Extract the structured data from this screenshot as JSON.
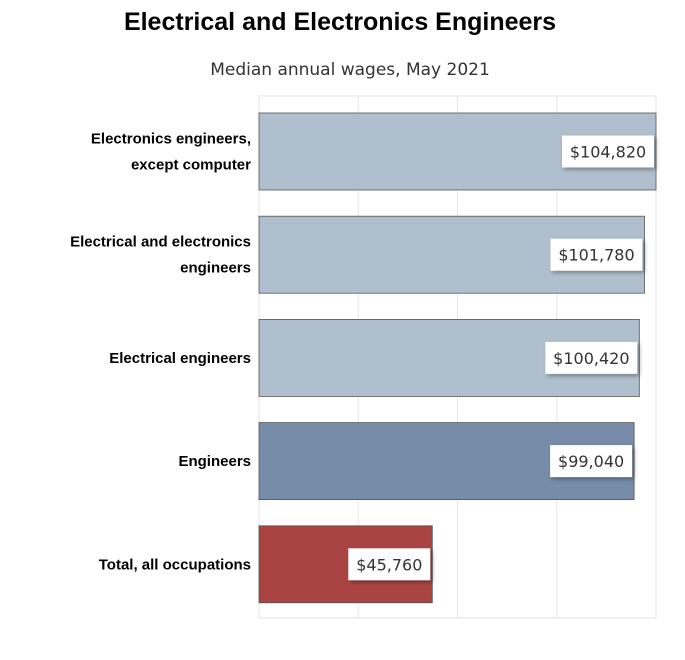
{
  "chart_data": {
    "type": "bar",
    "orientation": "horizontal",
    "title": "Electrical and Electronics Engineers",
    "subtitle": "Median annual wages, May 2021",
    "categories": [
      [
        "Electronics engineers,",
        "except computer"
      ],
      [
        "Electrical and electronics",
        "engineers"
      ],
      [
        "Electrical engineers"
      ],
      [
        "Engineers"
      ],
      [
        "Total, all occupations"
      ]
    ],
    "values": [
      104820,
      101780,
      100420,
      99040,
      45760
    ],
    "value_labels": [
      "$104,820",
      "$101,780",
      "$100,420",
      "$99,040",
      "$45,760"
    ],
    "bar_colors": [
      "#b0bfcd",
      "#b0bfcd",
      "#b0bfcd",
      "#778ca8",
      "#a94442"
    ],
    "xlim": [
      0,
      104820
    ],
    "grid": true,
    "legend": "none"
  }
}
